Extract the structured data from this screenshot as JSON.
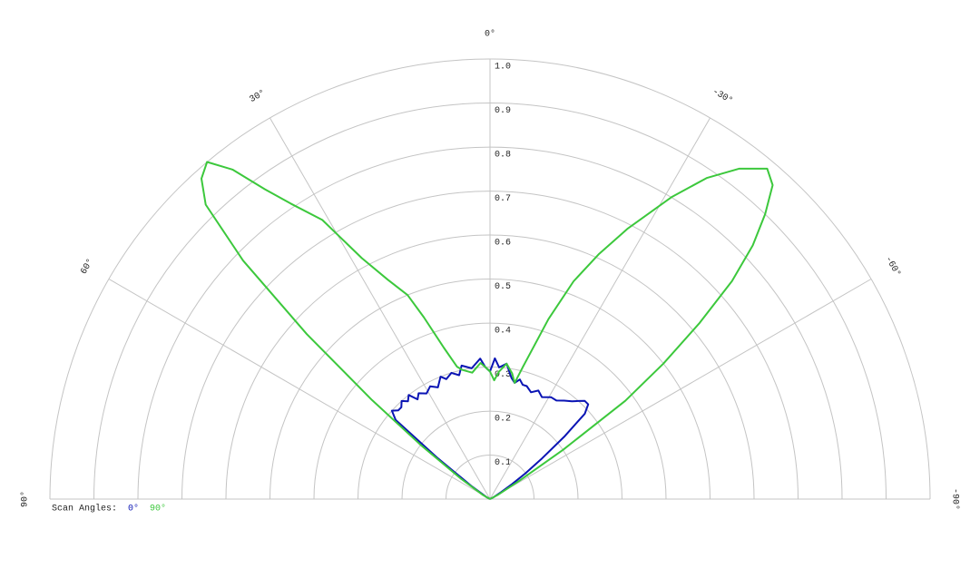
{
  "chart_data": {
    "type": "polar",
    "legend_title": "Scan Angles:",
    "legend": "bottom-left",
    "grid": true,
    "rlim": [
      0,
      1
    ],
    "rticks": [
      0.1,
      0.2,
      0.3,
      0.4,
      0.5,
      0.6,
      0.7,
      0.8,
      0.9,
      {
        "value": 1,
        "label": "1.0"
      }
    ],
    "thetalim": [
      90,
      -90
    ],
    "thetaticks": [
      {
        "value": 90,
        "label": "90°"
      },
      {
        "value": 60,
        "label": "60°"
      },
      {
        "value": 30,
        "label": "30°"
      },
      {
        "value": 0,
        "label": "0°"
      },
      {
        "value": -30,
        "label": "-30°"
      },
      {
        "value": -60,
        "label": "-60°"
      },
      {
        "value": -90,
        "label": "-90°"
      }
    ],
    "x": [
      90,
      70,
      60,
      55,
      52,
      50,
      48,
      46,
      44,
      42,
      40,
      38,
      36,
      34,
      31,
      28,
      25,
      22,
      20,
      17,
      14,
      12,
      8,
      4,
      2,
      0,
      -2,
      -4,
      -7,
      -10,
      -12,
      -14,
      -16,
      -18,
      -21,
      -24,
      -27,
      -31,
      -34,
      -37,
      -40,
      -42,
      -44,
      -46,
      -48,
      -50,
      -52,
      -54,
      -56,
      -58,
      -62,
      -70,
      -90
    ],
    "series": [
      {
        "name": "0°",
        "color": "#0a14b4",
        "values": [
          0,
          0,
          0.01,
          0.05,
          0.15,
          0.28,
          0.3,
          0.29,
          0.29,
          0.3,
          0.29,
          0.3,
          0.28,
          0.29,
          0.28,
          0.29,
          0.28,
          0.3,
          0.29,
          0.3,
          0.29,
          0.31,
          0.3,
          0.32,
          0.3,
          0.29,
          0.32,
          0.3,
          0.31,
          0.28,
          0.27,
          0.28,
          0.27,
          0.27,
          0.26,
          0.27,
          0.26,
          0.27,
          0.27,
          0.28,
          0.29,
          0.3,
          0.31,
          0.31,
          0.29,
          0.22,
          0.15,
          0.1,
          0.06,
          0.03,
          0.01,
          0,
          0
        ]
      },
      {
        "name": "90°",
        "color": "#3cc83c",
        "values": [
          0,
          0,
          0.02,
          0.08,
          0.2,
          0.35,
          0.56,
          0.78,
          0.93,
          0.98,
          1.0,
          0.95,
          0.87,
          0.81,
          0.74,
          0.62,
          0.55,
          0.5,
          0.44,
          0.36,
          0.31,
          0.3,
          0.29,
          0.31,
          0.3,
          0.29,
          0.27,
          0.29,
          0.31,
          0.29,
          0.27,
          0.31,
          0.36,
          0.43,
          0.53,
          0.61,
          0.69,
          0.8,
          0.88,
          0.94,
          0.98,
          0.96,
          0.9,
          0.83,
          0.74,
          0.62,
          0.5,
          0.38,
          0.2,
          0.08,
          0.02,
          0,
          0
        ]
      }
    ]
  }
}
